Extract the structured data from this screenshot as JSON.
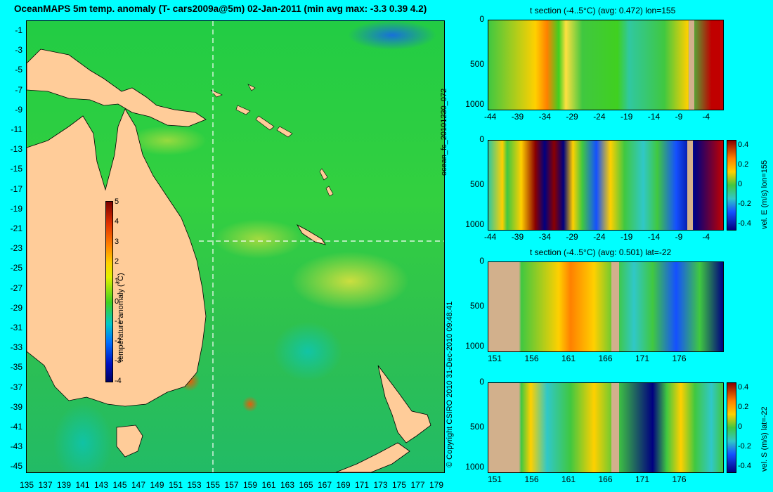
{
  "title": "OceanMAPS 5m temp. anomaly (T- cars2009a@5m) 02-Jan-2011 (min avg max: -3.3 0.39 4.2)",
  "map": {
    "lat_labels": [
      "-1",
      "-3",
      "-5",
      "-7",
      "-9",
      "-11",
      "-13",
      "-15",
      "-17",
      "-19",
      "-21",
      "-23",
      "-25",
      "-27",
      "-29",
      "-31",
      "-33",
      "-35",
      "-37",
      "-39",
      "-41",
      "-43",
      "-45"
    ],
    "lon_labels": [
      "135",
      "137",
      "139",
      "141",
      "143",
      "145",
      "147",
      "149",
      "151",
      "153",
      "155",
      "157",
      "159",
      "161",
      "163",
      "165",
      "167",
      "169",
      "171",
      "173",
      "175",
      "177",
      "179"
    ],
    "crosshair_lon": 155,
    "crosshair_lat": -22,
    "colors": {
      "ocean_mid": "#33d040",
      "warm": "#ffe040",
      "hot": "#ff5000",
      "cold": "#1450ff",
      "land": "#ffcc99"
    }
  },
  "colorbar": {
    "title": "temperature anomaly (°C)",
    "ticks": [
      "5",
      "4",
      "3",
      "2",
      "1",
      "0",
      "-1",
      "-2",
      "-3",
      "-4"
    ]
  },
  "panels": [
    {
      "title": "t section (-4..5°C) (avg: 0.472) lon=155",
      "y_ticks": [
        "0",
        "500",
        "1000"
      ],
      "x_ticks": [
        "-44",
        "-39",
        "-34",
        "-29",
        "-24",
        "-19",
        "-14",
        "-9",
        "-4"
      ]
    },
    {
      "title": "",
      "y_ticks": [
        "0",
        "500",
        "1000"
      ],
      "x_ticks": [
        "-44",
        "-39",
        "-34",
        "-29",
        "-24",
        "-19",
        "-14",
        "-9",
        "-4"
      ],
      "cb_ticks": [
        "0.4",
        "0.2",
        "0",
        "-0.2",
        "-0.4"
      ],
      "cb_label": "vel. E (m/s) lon=155"
    },
    {
      "title": "t section (-4..5°C) (avg: 0.501) lat=-22",
      "y_ticks": [
        "0",
        "500",
        "1000"
      ],
      "x_ticks": [
        "151",
        "156",
        "161",
        "166",
        "171",
        "176"
      ]
    },
    {
      "title": "",
      "y_ticks": [
        "0",
        "500",
        "1000"
      ],
      "x_ticks": [
        "151",
        "156",
        "161",
        "166",
        "171",
        "176"
      ],
      "cb_ticks": [
        "0.4",
        "0.2",
        "0",
        "-0.2",
        "-0.4"
      ],
      "cb_label": "vel. S (m/s) lat=-22"
    }
  ],
  "side_labels": {
    "run": "ocean_fc_20101230_072",
    "copyright": "© Copyright CSIRO 2010   31-Dec-2010 09:48:41"
  }
}
